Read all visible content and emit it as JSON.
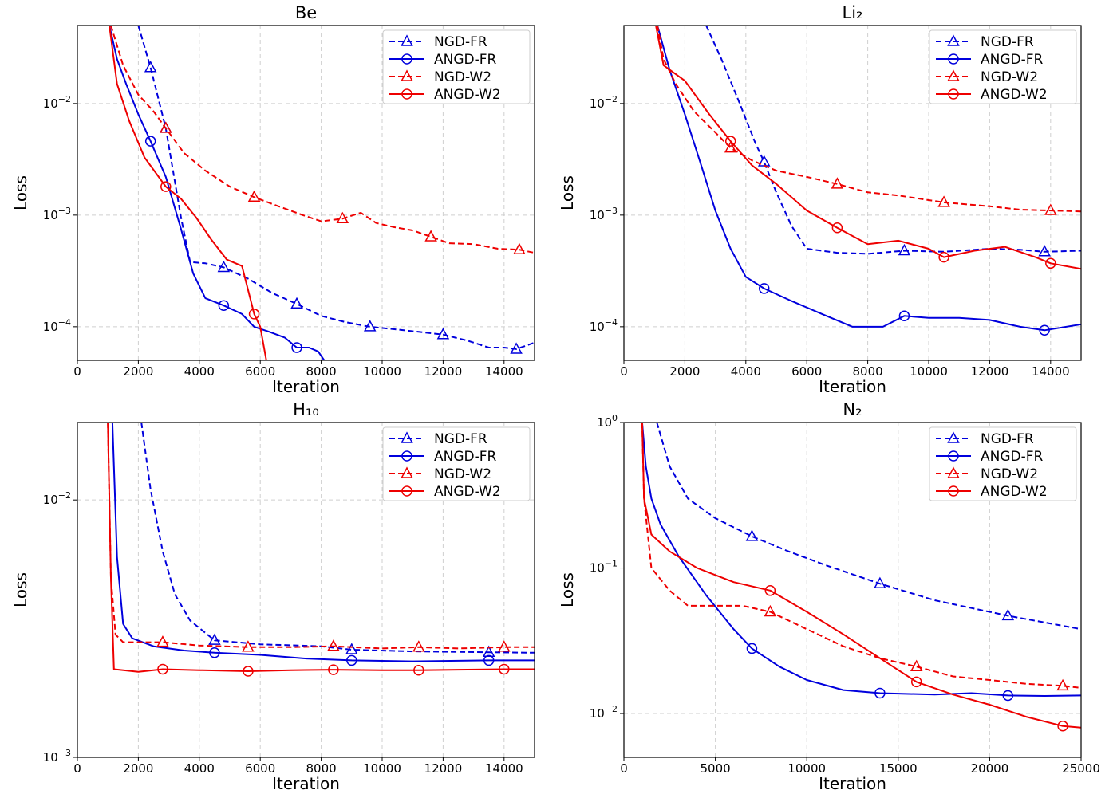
{
  "chart_data": [
    {
      "type": "line",
      "title": "Be",
      "xlabel": "Iteration",
      "ylabel": "Loss",
      "yscale": "log",
      "xlim": [
        0,
        15000
      ],
      "ylim": [
        5e-05,
        0.05
      ],
      "xticks": [
        0,
        2000,
        4000,
        6000,
        8000,
        10000,
        12000,
        14000
      ],
      "xtick_labels": [
        "0",
        "2000",
        "4000",
        "6000",
        "8000",
        "10000",
        "12000",
        "14000"
      ],
      "yticks": [
        0.0001,
        0.001,
        0.01
      ],
      "ytick_labels": [
        [
          "10",
          "−4"
        ],
        [
          "10",
          "−3"
        ],
        [
          "10",
          "−2"
        ]
      ],
      "grid": true,
      "legend": "top-right",
      "series": [
        {
          "name": "NGD-FR",
          "color": "#0000dd",
          "style": "dashed",
          "marker": "triangle",
          "x": [
            2000,
            2400,
            2900,
            3400,
            3700,
            4200,
            4800,
            5600,
            6400,
            7200,
            8000,
            8800,
            9600,
            10400,
            11200,
            12000,
            12800,
            13500,
            14000,
            14400,
            15000
          ],
          "y": [
            0.05,
            0.021,
            0.006,
            0.00095,
            0.00038,
            0.00037,
            0.00034,
            0.00027,
            0.0002,
            0.00016,
            0.000125,
            0.00011,
            0.0001,
            9.5e-05,
            9e-05,
            8.5e-05,
            7.5e-05,
            6.5e-05,
            6.5e-05,
            6.3e-05,
            7.2e-05
          ],
          "markers_x": [
            2400,
            2900,
            4800,
            7200,
            9600,
            12000,
            14400
          ]
        },
        {
          "name": "ANGD-FR",
          "color": "#0000dd",
          "style": "solid",
          "marker": "circle",
          "x": [
            1050,
            1300,
            1600,
            2000,
            2400,
            2900,
            3400,
            3800,
            4200,
            4800,
            5400,
            5800,
            6300,
            6800,
            7200,
            7600,
            7900,
            8100
          ],
          "y": [
            0.05,
            0.025,
            0.015,
            0.008,
            0.0046,
            0.0022,
            0.00075,
            0.0003,
            0.00018,
            0.000155,
            0.00013,
            0.0001,
            9e-05,
            8e-05,
            6.5e-05,
            6.5e-05,
            6e-05,
            5e-05
          ],
          "markers_x": [
            2400,
            4800,
            7200
          ]
        },
        {
          "name": "NGD-W2",
          "color": "#ee0000",
          "style": "dashed",
          "marker": "triangle",
          "x": [
            1100,
            1500,
            2000,
            2500,
            2900,
            3500,
            4200,
            5000,
            5800,
            6600,
            7400,
            8000,
            8700,
            9300,
            9800,
            10400,
            11000,
            11600,
            12200,
            13000,
            13800,
            14500,
            15000
          ],
          "y": [
            0.05,
            0.022,
            0.012,
            0.0085,
            0.006,
            0.0036,
            0.0025,
            0.0018,
            0.00145,
            0.0012,
            0.001,
            0.00088,
            0.00093,
            0.00105,
            0.00085,
            0.00078,
            0.00073,
            0.00064,
            0.00056,
            0.00055,
            0.0005,
            0.00049,
            0.00046
          ],
          "markers_x": [
            2900,
            5800,
            8700,
            11600,
            14500
          ]
        },
        {
          "name": "ANGD-W2",
          "color": "#ee0000",
          "style": "solid",
          "marker": "circle",
          "x": [
            1050,
            1300,
            1700,
            2200,
            2900,
            3400,
            3900,
            4400,
            4900,
            5400,
            5800,
            6000,
            6200
          ],
          "y": [
            0.05,
            0.015,
            0.007,
            0.0033,
            0.0018,
            0.0014,
            0.00095,
            0.0006,
            0.0004,
            0.00035,
            0.00013,
            0.0001,
            5e-05
          ],
          "markers_x": [
            2900,
            5800
          ]
        }
      ]
    },
    {
      "type": "line",
      "title": "Li₂",
      "xlabel": "Iteration",
      "ylabel": "Loss",
      "yscale": "log",
      "xlim": [
        0,
        15000
      ],
      "ylim": [
        5e-05,
        0.05
      ],
      "xticks": [
        0,
        2000,
        4000,
        6000,
        8000,
        10000,
        12000,
        14000
      ],
      "xtick_labels": [
        "0",
        "2000",
        "4000",
        "6000",
        "8000",
        "10000",
        "12000",
        "14000"
      ],
      "yticks": [
        0.0001,
        0.001,
        0.01
      ],
      "ytick_labels": [
        [
          "10",
          "−4"
        ],
        [
          "10",
          "−3"
        ],
        [
          "10",
          "−2"
        ]
      ],
      "grid": true,
      "legend": "top-right",
      "series": [
        {
          "name": "NGD-FR",
          "color": "#0000dd",
          "style": "dashed",
          "marker": "triangle",
          "x": [
            2700,
            3200,
            3800,
            4300,
            4600,
            5000,
            5500,
            6000,
            7000,
            8000,
            9200,
            10500,
            12000,
            13000,
            13800,
            15000
          ],
          "y": [
            0.05,
            0.025,
            0.01,
            0.0045,
            0.003,
            0.0016,
            0.0008,
            0.0005,
            0.00046,
            0.00045,
            0.00048,
            0.00047,
            0.0005,
            0.00049,
            0.00047,
            0.00048
          ],
          "markers_x": [
            4600,
            9200,
            13800
          ]
        },
        {
          "name": "ANGD-FR",
          "color": "#0000dd",
          "style": "solid",
          "marker": "circle",
          "x": [
            1100,
            1500,
            2000,
            2500,
            3000,
            3500,
            4000,
            4600,
            5500,
            6500,
            7500,
            8500,
            9200,
            10000,
            11000,
            12000,
            13000,
            13800,
            15000
          ],
          "y": [
            0.05,
            0.02,
            0.008,
            0.003,
            0.0011,
            0.0005,
            0.00028,
            0.00022,
            0.00017,
            0.00013,
            0.0001,
            0.0001,
            0.000125,
            0.00012,
            0.00012,
            0.000115,
            0.0001,
            9.3e-05,
            0.000105
          ],
          "markers_x": [
            4600,
            9200,
            13800
          ]
        },
        {
          "name": "NGD-W2",
          "color": "#ee0000",
          "style": "dashed",
          "marker": "triangle",
          "x": [
            1100,
            1300,
            1700,
            2300,
            3000,
            3500,
            4200,
            5000,
            6000,
            7000,
            8000,
            9000,
            10500,
            12000,
            13000,
            14000,
            15000
          ],
          "y": [
            0.05,
            0.025,
            0.015,
            0.0085,
            0.0055,
            0.004,
            0.0031,
            0.0025,
            0.0022,
            0.0019,
            0.0016,
            0.0015,
            0.0013,
            0.0012,
            0.00112,
            0.0011,
            0.00108
          ],
          "markers_x": [
            3500,
            7000,
            10500,
            14000
          ]
        },
        {
          "name": "ANGD-W2",
          "color": "#ee0000",
          "style": "solid",
          "marker": "circle",
          "x": [
            1050,
            1300,
            2000,
            2800,
            3500,
            4200,
            5000,
            6000,
            7000,
            8000,
            9000,
            10000,
            10500,
            11500,
            12500,
            13500,
            14000,
            15000
          ],
          "y": [
            0.05,
            0.022,
            0.016,
            0.008,
            0.0046,
            0.0028,
            0.0019,
            0.0011,
            0.00077,
            0.00055,
            0.00059,
            0.0005,
            0.00042,
            0.00048,
            0.00052,
            0.00042,
            0.00037,
            0.00033
          ],
          "markers_x": [
            3500,
            7000,
            10500,
            14000
          ]
        }
      ]
    },
    {
      "type": "line",
      "title": "H₁₀",
      "xlabel": "Iteration",
      "ylabel": "Loss",
      "yscale": "log",
      "xlim": [
        0,
        15000
      ],
      "ylim": [
        0.001,
        0.02
      ],
      "xticks": [
        0,
        2000,
        4000,
        6000,
        8000,
        10000,
        12000,
        14000
      ],
      "xtick_labels": [
        "0",
        "2000",
        "4000",
        "6000",
        "8000",
        "10000",
        "12000",
        "14000"
      ],
      "yticks": [
        0.001,
        0.01
      ],
      "ytick_labels": [
        [
          "10",
          "−3"
        ],
        [
          "10",
          "−2"
        ]
      ],
      "grid": true,
      "legend": "top-right",
      "series": [
        {
          "name": "NGD-FR",
          "color": "#0000dd",
          "style": "dashed",
          "marker": "triangle",
          "x": [
            2100,
            2400,
            2800,
            3200,
            3700,
            4500,
            6000,
            8000,
            9000,
            11000,
            13500,
            15000
          ],
          "y": [
            0.02,
            0.011,
            0.0063,
            0.0043,
            0.0034,
            0.00285,
            0.00275,
            0.0027,
            0.00262,
            0.00258,
            0.00256,
            0.00255
          ],
          "markers_x": [
            4500,
            9000,
            13500
          ]
        },
        {
          "name": "ANGD-FR",
          "color": "#0000dd",
          "style": "solid",
          "marker": "circle",
          "x": [
            1150,
            1300,
            1500,
            1800,
            2500,
            3500,
            4500,
            6000,
            7500,
            9000,
            11000,
            13500,
            15000
          ],
          "y": [
            0.02,
            0.006,
            0.0033,
            0.0029,
            0.0027,
            0.0026,
            0.00255,
            0.0025,
            0.00242,
            0.00238,
            0.00236,
            0.00238,
            0.00238
          ],
          "markers_x": [
            4500,
            9000,
            13500
          ]
        },
        {
          "name": "NGD-W2",
          "color": "#ee0000",
          "style": "dashed",
          "marker": "triangle",
          "x": [
            1000,
            1100,
            1250,
            1500,
            2000,
            2800,
            4000,
            5600,
            7000,
            8400,
            10000,
            11200,
            12500,
            14000,
            15000
          ],
          "y": [
            0.02,
            0.005,
            0.003,
            0.0028,
            0.0028,
            0.0028,
            0.00272,
            0.00268,
            0.00268,
            0.0027,
            0.00265,
            0.00268,
            0.00265,
            0.00268,
            0.00268
          ],
          "markers_x": [
            2800,
            5600,
            8400,
            11200,
            14000
          ]
        },
        {
          "name": "ANGD-W2",
          "color": "#ee0000",
          "style": "solid",
          "marker": "circle",
          "x": [
            1000,
            1100,
            1200,
            2000,
            2800,
            4000,
            5600,
            7000,
            8400,
            10000,
            11200,
            12500,
            14000,
            15000
          ],
          "y": [
            0.02,
            0.005,
            0.0022,
            0.00215,
            0.0022,
            0.00218,
            0.00216,
            0.00218,
            0.00219,
            0.00218,
            0.00218,
            0.00219,
            0.0022,
            0.0022
          ],
          "markers_x": [
            2800,
            5600,
            8400,
            11200,
            14000
          ]
        }
      ]
    },
    {
      "type": "line",
      "title": "N₂",
      "xlabel": "Iteration",
      "ylabel": "Loss",
      "yscale": "log",
      "xlim": [
        0,
        25000
      ],
      "ylim": [
        0.005,
        1
      ],
      "xticks": [
        0,
        5000,
        10000,
        15000,
        20000,
        25000
      ],
      "xtick_labels": [
        "0",
        "5000",
        "10000",
        "15000",
        "20000",
        "25000"
      ],
      "yticks": [
        0.01,
        0.1,
        1
      ],
      "ytick_labels": [
        [
          "10",
          "−2"
        ],
        [
          "10",
          "−1"
        ],
        [
          "10",
          "0"
        ]
      ],
      "grid": true,
      "legend": "top-right",
      "series": [
        {
          "name": "NGD-FR",
          "color": "#0000dd",
          "style": "dashed",
          "marker": "triangle",
          "x": [
            1800,
            2500,
            3500,
            5000,
            7000,
            9000,
            11000,
            14000,
            17000,
            21000,
            25000
          ],
          "y": [
            1.0,
            0.5,
            0.3,
            0.22,
            0.165,
            0.13,
            0.105,
            0.078,
            0.06,
            0.047,
            0.038
          ],
          "markers_x": [
            7000,
            14000,
            21000
          ]
        },
        {
          "name": "ANGD-FR",
          "color": "#0000dd",
          "style": "solid",
          "marker": "circle",
          "x": [
            1000,
            1200,
            1500,
            2000,
            3000,
            4500,
            6000,
            7000,
            8500,
            10000,
            12000,
            14000,
            17000,
            19000,
            21000,
            23000,
            25000
          ],
          "y": [
            1.0,
            0.5,
            0.3,
            0.2,
            0.12,
            0.065,
            0.038,
            0.028,
            0.021,
            0.017,
            0.0145,
            0.0138,
            0.0135,
            0.0138,
            0.0133,
            0.0132,
            0.0133
          ],
          "markers_x": [
            7000,
            14000,
            21000
          ]
        },
        {
          "name": "NGD-W2",
          "color": "#ee0000",
          "style": "dashed",
          "marker": "triangle",
          "x": [
            1000,
            1100,
            1500,
            2500,
            3500,
            5000,
            6500,
            8000,
            10000,
            12000,
            14000,
            16000,
            18000,
            20000,
            22000,
            24000,
            25000
          ],
          "y": [
            1.0,
            0.3,
            0.1,
            0.07,
            0.055,
            0.055,
            0.055,
            0.05,
            0.038,
            0.029,
            0.024,
            0.021,
            0.018,
            0.017,
            0.016,
            0.0155,
            0.015
          ],
          "markers_x": [
            8000,
            16000,
            24000
          ]
        },
        {
          "name": "ANGD-W2",
          "color": "#ee0000",
          "style": "solid",
          "marker": "circle",
          "x": [
            1000,
            1100,
            1500,
            2500,
            4000,
            6000,
            8000,
            10000,
            12000,
            14000,
            16000,
            18000,
            20000,
            22000,
            24000,
            25000
          ],
          "y": [
            1.0,
            0.3,
            0.17,
            0.13,
            0.1,
            0.08,
            0.07,
            0.05,
            0.035,
            0.024,
            0.0165,
            0.0135,
            0.0115,
            0.0095,
            0.0082,
            0.008
          ],
          "markers_x": [
            8000,
            16000,
            24000
          ]
        }
      ]
    }
  ]
}
